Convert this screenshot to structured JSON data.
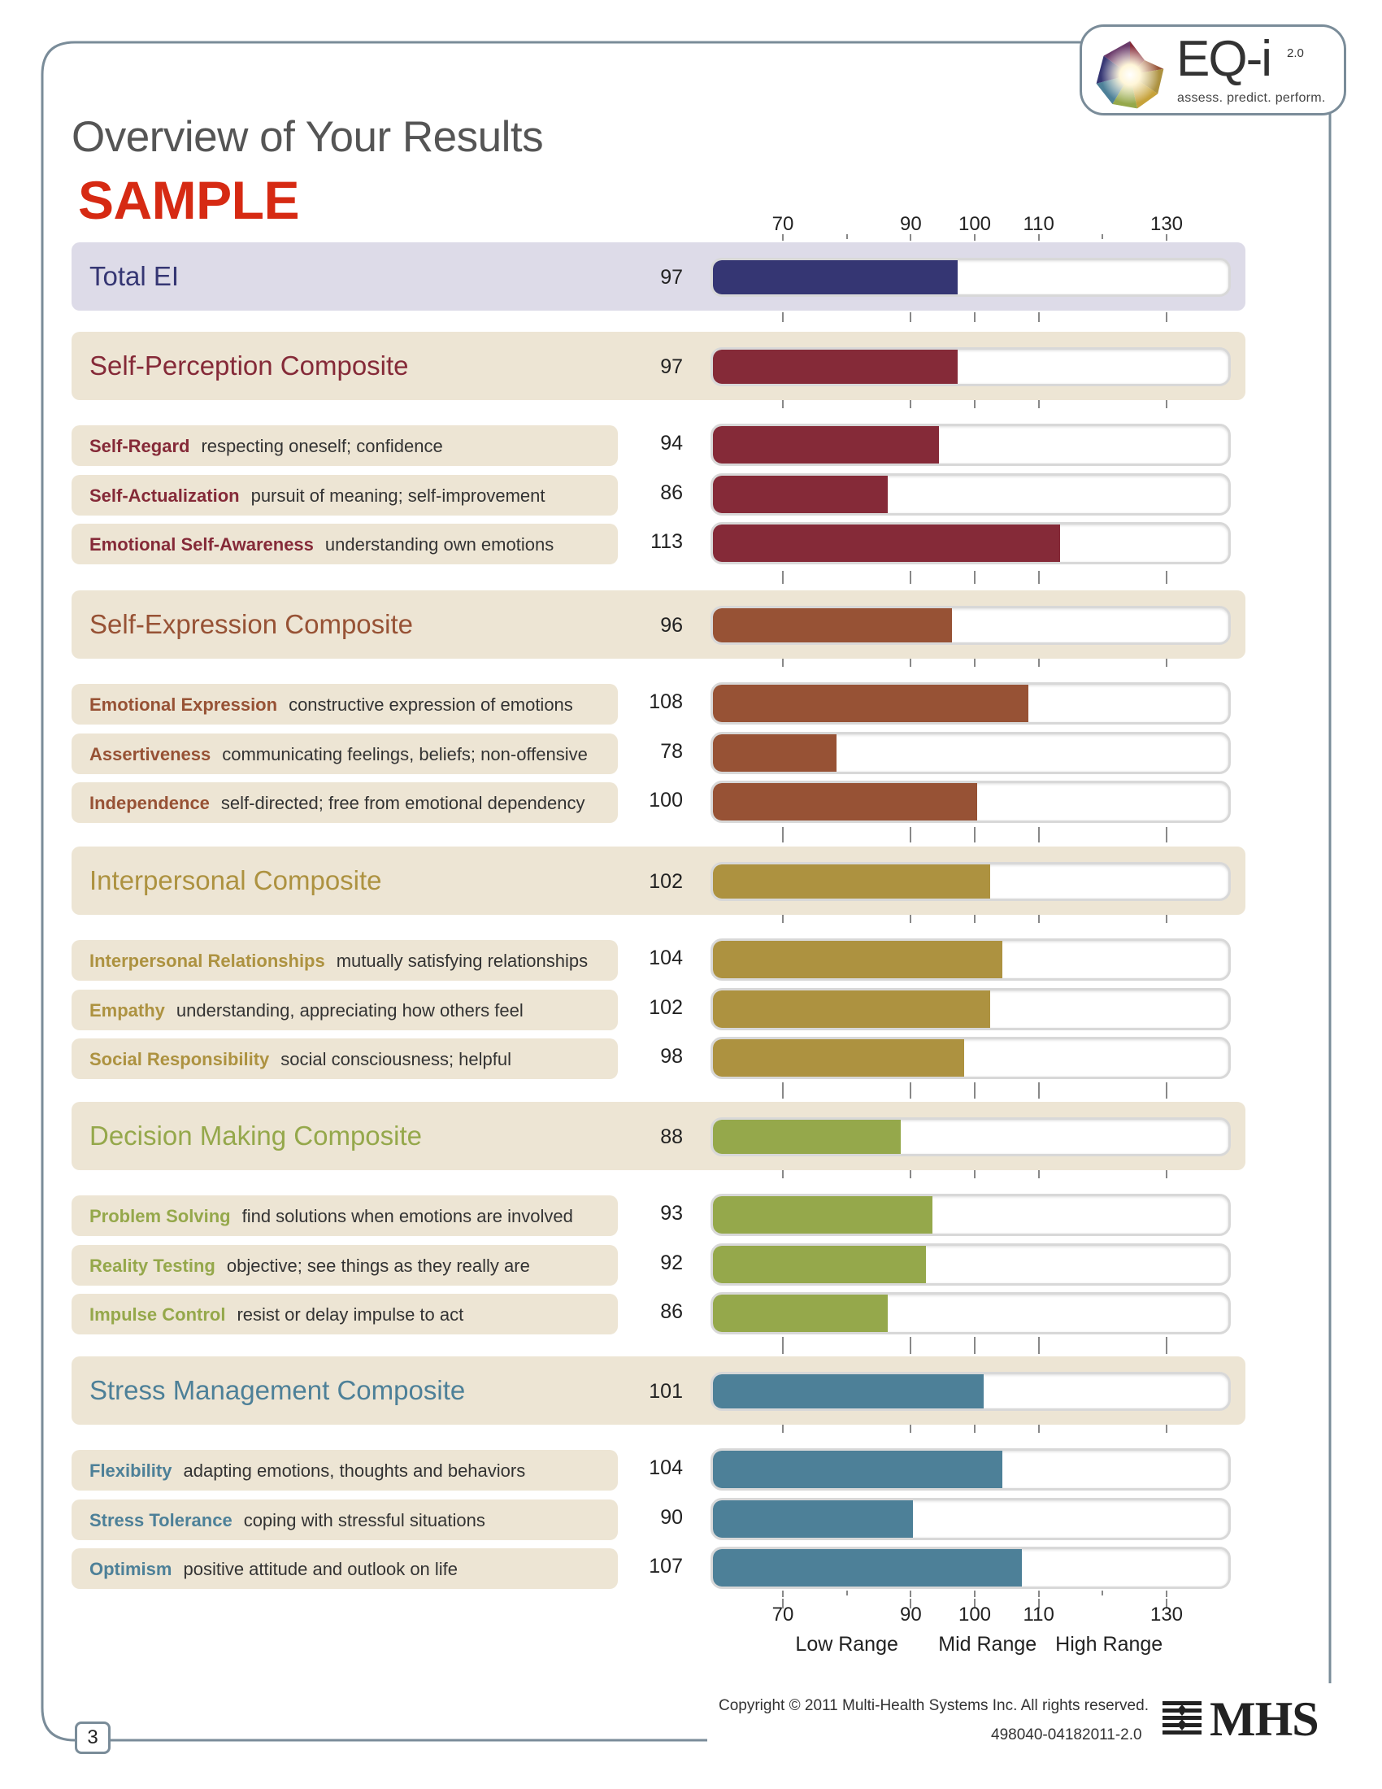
{
  "page": {
    "title": "Overview of Your Results",
    "stamp": "SAMPLE",
    "page_number": "3",
    "copyright": "Copyright © 2011 Multi-Health Systems Inc. All rights reserved.",
    "doc_code": "498040-04182011-2.0"
  },
  "brand": {
    "product": "EQ-i",
    "version": "2.0",
    "tagline": "assess. predict. perform.",
    "publisher": "MHS"
  },
  "colors": {
    "total": "#353673",
    "self_perception": "#852a38",
    "self_expression": "#975235",
    "interpersonal": "#ad9240",
    "decision_making": "#95a84b",
    "stress_management": "#4d8098",
    "total_band": "#dddbe8",
    "composite_band": "#ede5d4",
    "subscale_pill": "#ede5d4",
    "frame": "#7a8c99"
  },
  "chart_data": {
    "type": "bar",
    "orientation": "horizontal",
    "xlim": [
      50,
      150
    ],
    "ticks": [
      70,
      90,
      100,
      110,
      130
    ],
    "minor_ticks": [
      80,
      120
    ],
    "range_labels": [
      "Low Range",
      "Mid Range",
      "High Range"
    ],
    "total": {
      "name": "Total EI",
      "value": 97
    },
    "composites": [
      {
        "name": "Self-Perception Composite",
        "value": 97,
        "color_key": "self_perception",
        "subscales": [
          {
            "name": "Self-Regard",
            "desc": "respecting oneself; confidence",
            "value": 94
          },
          {
            "name": "Self-Actualization",
            "desc": "pursuit of meaning; self-improvement",
            "value": 86
          },
          {
            "name": "Emotional Self-Awareness",
            "desc": "understanding own emotions",
            "value": 113
          }
        ]
      },
      {
        "name": "Self-Expression Composite",
        "value": 96,
        "color_key": "self_expression",
        "subscales": [
          {
            "name": "Emotional Expression",
            "desc": "constructive expression of emotions",
            "value": 108
          },
          {
            "name": "Assertiveness",
            "desc": "communicating feelings, beliefs; non-offensive",
            "value": 78
          },
          {
            "name": "Independence",
            "desc": "self-directed; free from emotional dependency",
            "value": 100
          }
        ]
      },
      {
        "name": "Interpersonal Composite",
        "value": 102,
        "color_key": "interpersonal",
        "subscales": [
          {
            "name": "Interpersonal Relationships",
            "desc": "mutually satisfying relationships",
            "value": 104
          },
          {
            "name": "Empathy",
            "desc": "understanding, appreciating how others feel",
            "value": 102
          },
          {
            "name": "Social Responsibility",
            "desc": "social consciousness; helpful",
            "value": 98
          }
        ]
      },
      {
        "name": "Decision Making Composite",
        "value": 88,
        "color_key": "decision_making",
        "subscales": [
          {
            "name": "Problem Solving",
            "desc": "find solutions when emotions are involved",
            "value": 93
          },
          {
            "name": "Reality Testing",
            "desc": "objective; see things as they really are",
            "value": 92
          },
          {
            "name": "Impulse Control",
            "desc": "resist or delay impulse to act",
            "value": 86
          }
        ]
      },
      {
        "name": "Stress Management Composite",
        "value": 101,
        "color_key": "stress_management",
        "subscales": [
          {
            "name": "Flexibility",
            "desc": "adapting emotions, thoughts and behaviors",
            "value": 104
          },
          {
            "name": "Stress Tolerance",
            "desc": "coping with stressful situations",
            "value": 90
          },
          {
            "name": "Optimism",
            "desc": "positive attitude and outlook on life",
            "value": 107
          }
        ]
      }
    ]
  }
}
